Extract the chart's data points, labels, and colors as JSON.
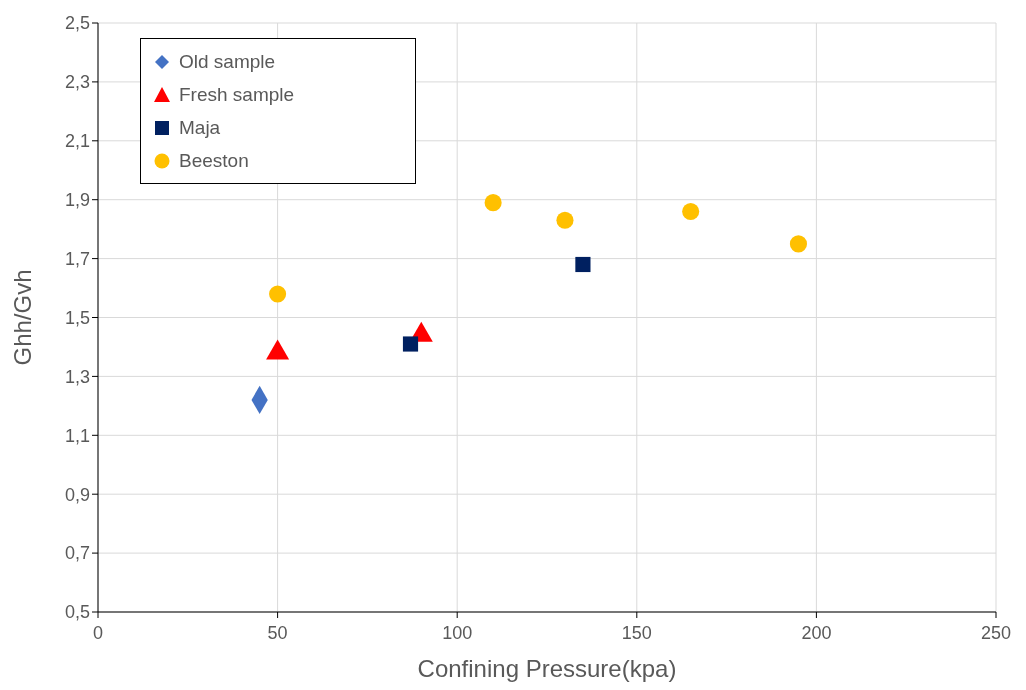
{
  "chart_data": {
    "type": "scatter",
    "xlabel": "Confining Pressure(kpa)",
    "ylabel": "Ghh/Gvh",
    "xlim": [
      0,
      250
    ],
    "xticks": [
      0,
      50,
      100,
      150,
      200,
      250
    ],
    "ylim": [
      0.5,
      2.5
    ],
    "yticks": [
      {
        "value": 0.5,
        "label": "0,5"
      },
      {
        "value": 0.7,
        "label": "0,7"
      },
      {
        "value": 0.9,
        "label": "0,9"
      },
      {
        "value": 1.1,
        "label": "1,1"
      },
      {
        "value": 1.3,
        "label": "1,3"
      },
      {
        "value": 1.5,
        "label": "1,5"
      },
      {
        "value": 1.7,
        "label": "1,7"
      },
      {
        "value": 1.9,
        "label": "1,9"
      },
      {
        "value": 2.1,
        "label": "2,1"
      },
      {
        "value": 2.3,
        "label": "2,3"
      },
      {
        "value": 2.5,
        "label": "2,5"
      }
    ],
    "grid": true,
    "legend": "top left",
    "series": [
      {
        "name": "Old sample",
        "color": "#4472c4",
        "marker": "diamond",
        "x": [
          45
        ],
        "values": [
          1.22
        ]
      },
      {
        "name": "Fresh sample",
        "color": "#ff0000",
        "marker": "triangle",
        "x": [
          50,
          90
        ],
        "values": [
          1.38,
          1.44
        ]
      },
      {
        "name": "Maja",
        "color": "#002060",
        "marker": "square",
        "x": [
          87,
          135
        ],
        "values": [
          1.41,
          1.68
        ]
      },
      {
        "name": "Beeston",
        "color": "#ffc000",
        "marker": "circle",
        "x": [
          50,
          110,
          130,
          165,
          195
        ],
        "values": [
          1.58,
          1.89,
          1.83,
          1.86,
          1.75
        ]
      }
    ]
  }
}
